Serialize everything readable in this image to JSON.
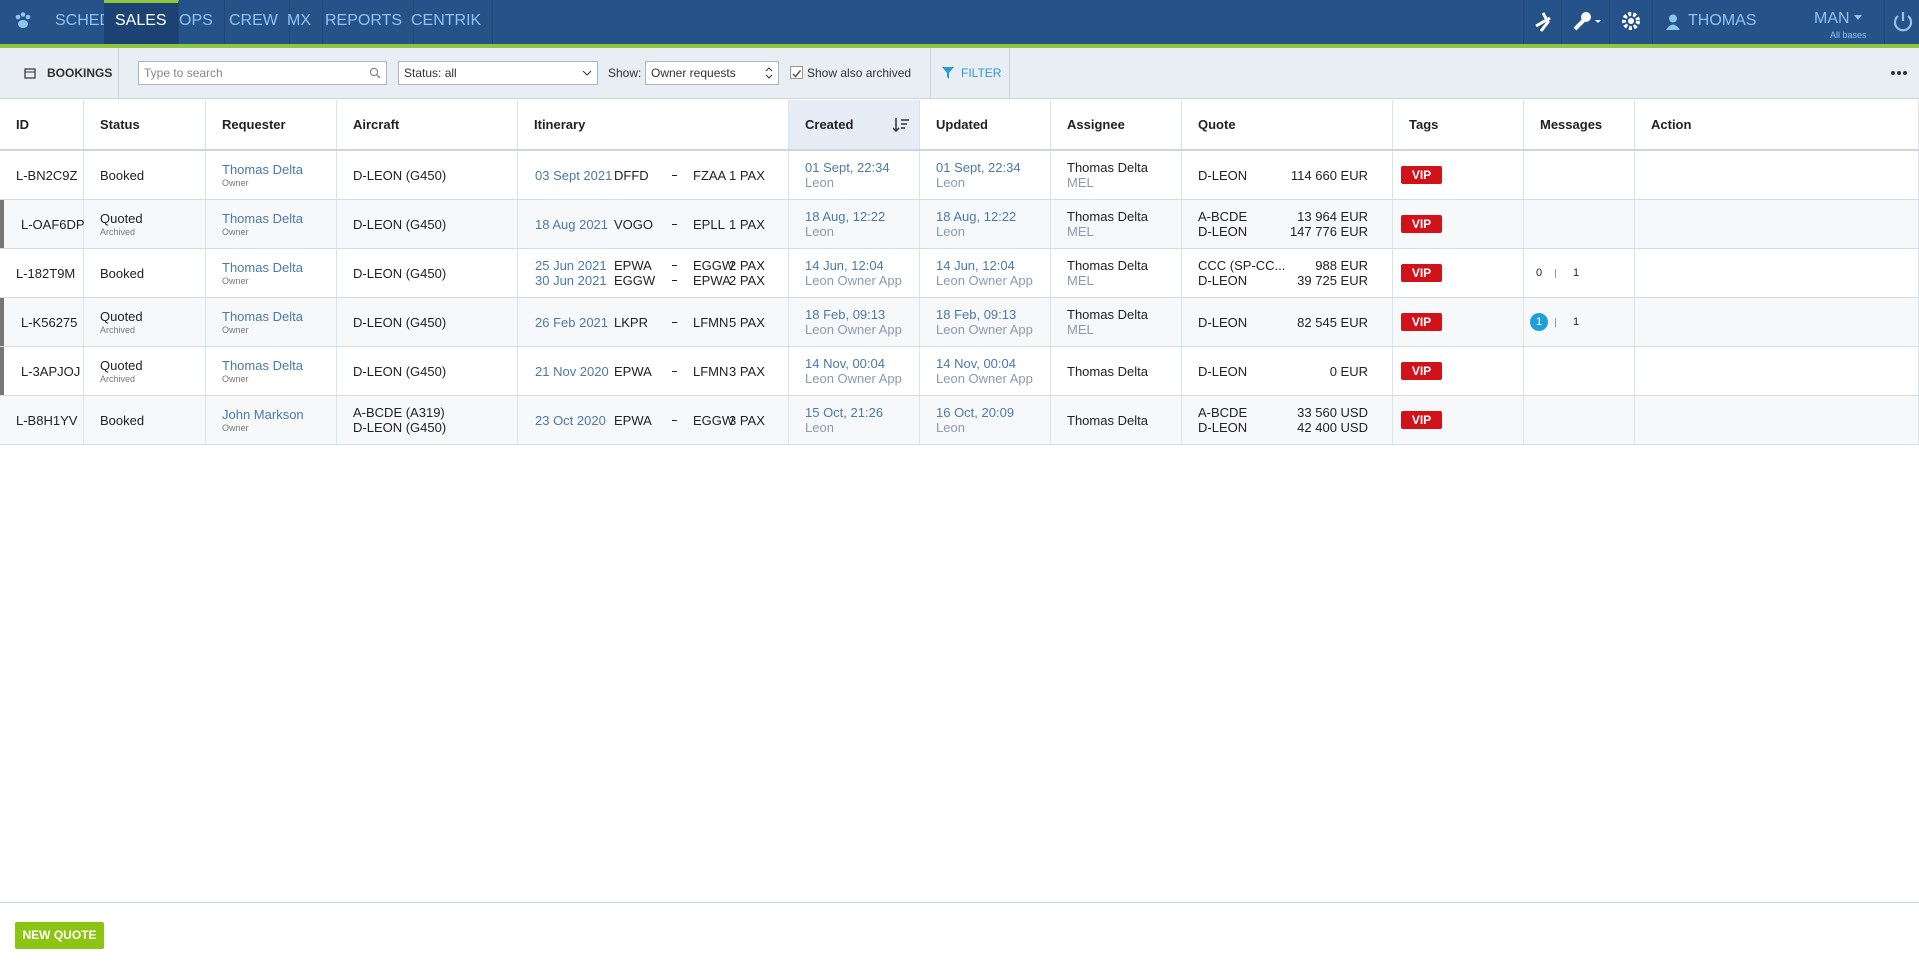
{
  "nav": {
    "items": [
      "SCHED",
      "SALES",
      "OPS",
      "CREW",
      "MX",
      "REPORTS",
      "CENTRIK"
    ],
    "active": 1,
    "user": "THOMAS DELTA",
    "base": "MAN",
    "base_note": "All bases"
  },
  "toolbar": {
    "section": "BOOKINGS",
    "search_placeholder": "Type to search",
    "status_filter": "Status: all",
    "show_label": "Show:",
    "show_value": "Owner requests",
    "archived_label": "Show also archived",
    "archived_checked": true,
    "filter": "FILTER"
  },
  "table": {
    "columns": [
      "ID",
      "Status",
      "Requester",
      "Aircraft",
      "Itinerary",
      "Created",
      "Updated",
      "Assignee",
      "Quote",
      "Tags",
      "Messages",
      "Action"
    ],
    "sorted_column": 5,
    "rows": [
      {
        "id": "L-BN2C9Z",
        "status": "Booked",
        "archived": false,
        "requester": "Thomas Delta",
        "requester_role": "Owner",
        "aircraft": [
          "D-LEON (G450)"
        ],
        "legs": [
          {
            "date": "03 Sept 2021",
            "from": "DFFD",
            "to": "FZAA",
            "pax": "1 PAX"
          }
        ],
        "created": {
          "time": "01 Sept, 22:34",
          "source": "Leon"
        },
        "updated": {
          "time": "01 Sept, 22:34",
          "source": "Leon"
        },
        "assignee": "Thomas Delta",
        "assignee_base": "MEL",
        "quote": [
          {
            "aircraft": "D-LEON",
            "price": "114 660 EUR"
          }
        ],
        "tags": [
          "VIP"
        ]
      },
      {
        "id": "L-OAF6DP",
        "status": "Quoted",
        "status_note": "Archived",
        "archived": true,
        "requester": "Thomas Delta",
        "requester_role": "Owner",
        "aircraft": [
          "D-LEON (G450)"
        ],
        "legs": [
          {
            "date": "18 Aug 2021",
            "from": "VOGO",
            "to": "EPLL",
            "pax": "1 PAX"
          }
        ],
        "created": {
          "time": "18 Aug, 12:22",
          "source": "Leon"
        },
        "updated": {
          "time": "18 Aug, 12:22",
          "source": "Leon"
        },
        "assignee": "Thomas Delta",
        "assignee_base": "MEL",
        "quote": [
          {
            "aircraft": "A-BCDE",
            "price": "13 964 EUR"
          },
          {
            "aircraft": "D-LEON",
            "price": "147 776 EUR"
          }
        ],
        "tags": [
          "VIP"
        ]
      },
      {
        "id": "L-182T9M",
        "status": "Booked",
        "archived": false,
        "requester": "Thomas Delta",
        "requester_role": "Owner",
        "aircraft": [
          "D-LEON (G450)"
        ],
        "legs": [
          {
            "date": "25 Jun 2021",
            "from": "EPWA",
            "to": "EGGW",
            "pax": "2 PAX"
          },
          {
            "date": "30 Jun 2021",
            "from": "EGGW",
            "to": "EPWA",
            "pax": "2 PAX"
          }
        ],
        "created": {
          "time": "14 Jun, 12:04",
          "source": "Leon Owner App"
        },
        "updated": {
          "time": "14 Jun, 12:04",
          "source": "Leon Owner App"
        },
        "assignee": "Thomas Delta",
        "assignee_base": "MEL",
        "quote": [
          {
            "aircraft": "CCC (SP-CC...",
            "price": "988 EUR"
          },
          {
            "aircraft": "D-LEON",
            "price": "39 725 EUR"
          }
        ],
        "tags": [
          "VIP"
        ],
        "messages": {
          "unread": 0,
          "total": 1,
          "highlight": false
        }
      },
      {
        "id": "L-K56275",
        "status": "Quoted",
        "status_note": "Archived",
        "archived": true,
        "requester": "Thomas Delta",
        "requester_role": "Owner",
        "aircraft": [
          "D-LEON (G450)"
        ],
        "legs": [
          {
            "date": "26 Feb 2021",
            "from": "LKPR",
            "to": "LFMN",
            "pax": "5 PAX"
          }
        ],
        "created": {
          "time": "18 Feb, 09:13",
          "source": "Leon Owner App"
        },
        "updated": {
          "time": "18 Feb, 09:13",
          "source": "Leon Owner App"
        },
        "assignee": "Thomas Delta",
        "assignee_base": "MEL",
        "quote": [
          {
            "aircraft": "D-LEON",
            "price": "82 545 EUR"
          }
        ],
        "tags": [
          "VIP"
        ],
        "messages": {
          "unread": 1,
          "total": 1,
          "highlight": true
        }
      },
      {
        "id": "L-3APJOJ",
        "status": "Quoted",
        "status_note": "Archived",
        "archived": true,
        "requester": "Thomas Delta",
        "requester_role": "Owner",
        "aircraft": [
          "D-LEON (G450)"
        ],
        "legs": [
          {
            "date": "21 Nov 2020",
            "from": "EPWA",
            "to": "LFMN",
            "pax": "3 PAX"
          }
        ],
        "created": {
          "time": "14 Nov, 00:04",
          "source": "Leon Owner App"
        },
        "updated": {
          "time": "14 Nov, 00:04",
          "source": "Leon Owner App"
        },
        "assignee": "Thomas Delta",
        "quote": [
          {
            "aircraft": "D-LEON",
            "price": "0 EUR"
          }
        ],
        "tags": [
          "VIP"
        ]
      },
      {
        "id": "L-B8H1YV",
        "status": "Booked",
        "archived": false,
        "requester": "John Markson",
        "requester_role": "Owner",
        "aircraft": [
          "A-BCDE (A319)",
          "D-LEON (G450)"
        ],
        "legs": [
          {
            "date": "23 Oct 2020",
            "from": "EPWA",
            "to": "EGGW",
            "pax": "3 PAX"
          }
        ],
        "created": {
          "time": "15 Oct, 21:26",
          "source": "Leon"
        },
        "updated": {
          "time": "16 Oct, 20:09",
          "source": "Leon"
        },
        "assignee": "Thomas Delta",
        "quote": [
          {
            "aircraft": "A-BCDE",
            "price": "33 560 USD"
          },
          {
            "aircraft": "D-LEON",
            "price": "42 400 USD"
          }
        ],
        "tags": [
          "VIP"
        ]
      }
    ]
  },
  "footer": {
    "button": "NEW QUOTE"
  }
}
